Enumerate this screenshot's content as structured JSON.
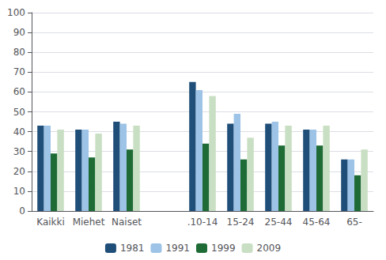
{
  "chart_data": {
    "type": "bar",
    "categories": [
      "Kaikki",
      "Miehet",
      "Naiset",
      null,
      ".10-14",
      "15-24",
      "25-44",
      "45-64",
      "65-"
    ],
    "series": [
      {
        "name": "1981",
        "color": "#1f4e79",
        "values": [
          43,
          41,
          45,
          null,
          65,
          44,
          44,
          41,
          26
        ]
      },
      {
        "name": "1991",
        "color": "#9dc3e6",
        "values": [
          43,
          41,
          44,
          null,
          61,
          49,
          45,
          41,
          26
        ]
      },
      {
        "name": "1999",
        "color": "#1e6b35",
        "values": [
          29,
          27,
          31,
          null,
          34,
          26,
          33,
          33,
          18
        ]
      },
      {
        "name": "2009",
        "color": "#c9dfc3",
        "values": [
          41,
          39,
          43,
          null,
          58,
          37,
          43,
          43,
          31
        ]
      }
    ],
    "ylim": [
      0,
      100
    ],
    "yticks": [
      0,
      10,
      20,
      30,
      40,
      50,
      60,
      70,
      80,
      90,
      100
    ],
    "grid": true,
    "legend": "bottom"
  }
}
